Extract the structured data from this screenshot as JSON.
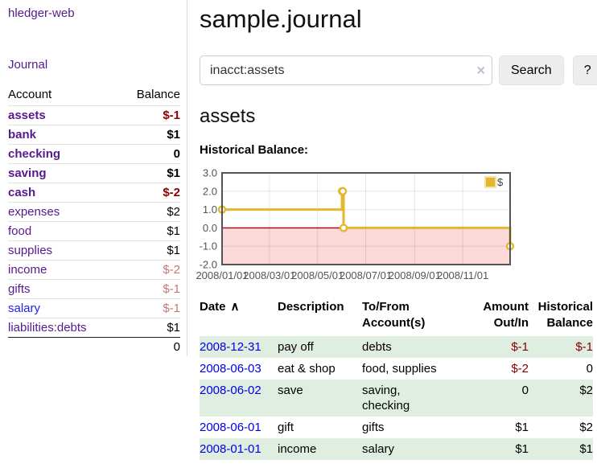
{
  "sidebar": {
    "app_title": "hledger-web",
    "journal_link": "Journal",
    "accounts_header": {
      "account": "Account",
      "balance": "Balance"
    },
    "accounts": [
      {
        "name": "assets",
        "balance": "$-1",
        "level": 1,
        "matched": true,
        "negative": "strong"
      },
      {
        "name": "bank",
        "balance": "$1",
        "level": 2,
        "matched": true,
        "negative": "none"
      },
      {
        "name": "checking",
        "balance": "0",
        "level": 3,
        "matched": true,
        "negative": "none"
      },
      {
        "name": "saving",
        "balance": "$1",
        "level": 3,
        "matched": true,
        "negative": "none"
      },
      {
        "name": "cash",
        "balance": "$-2",
        "level": 2,
        "matched": true,
        "negative": "strong"
      },
      {
        "name": "expenses",
        "balance": "$2",
        "level": 1,
        "matched": false,
        "negative": "none"
      },
      {
        "name": "food",
        "balance": "$1",
        "level": 2,
        "matched": false,
        "negative": "none"
      },
      {
        "name": "supplies",
        "balance": "$1",
        "level": 2,
        "matched": false,
        "negative": "none"
      },
      {
        "name": "income",
        "balance": "$-2",
        "level": 1,
        "matched": false,
        "negative": "dim"
      },
      {
        "name": "gifts",
        "balance": "$-1",
        "level": 2,
        "matched": false,
        "negative": "dim"
      },
      {
        "name": "salary",
        "balance": "$-1",
        "level": 2,
        "matched": false,
        "negative": "dim",
        "link_blue": true
      },
      {
        "name": "liabilities:debts",
        "balance": "$1",
        "level": 1,
        "matched": false,
        "negative": "none"
      }
    ],
    "total": "0"
  },
  "main": {
    "title": "sample.journal",
    "search": {
      "value": "inacct:assets",
      "clear_icon": "×",
      "button_label": "Search",
      "help_label": "?"
    },
    "section_title": "assets",
    "chart_label": "Historical Balance:"
  },
  "chart_data": {
    "type": "line",
    "step": true,
    "title": "Historical Balance",
    "series": [
      {
        "name": "$",
        "color": "#e3b730",
        "points": [
          {
            "date": "2008-01-01",
            "value": 1
          },
          {
            "date": "2008-06-01",
            "value": 2
          },
          {
            "date": "2008-06-02",
            "value": 2
          },
          {
            "date": "2008-06-03",
            "value": 0
          },
          {
            "date": "2008-12-31",
            "value": -1
          }
        ]
      }
    ],
    "x_ticks": [
      {
        "date": "2008-01-01",
        "label": "2008/01/01"
      },
      {
        "date": "2008-03-01",
        "label": "2008/03/01"
      },
      {
        "date": "2008-05-01",
        "label": "2008/05/01"
      },
      {
        "date": "2008-07-01",
        "label": "2008/07/01"
      },
      {
        "date": "2008-09-01",
        "label": "2008/09/01"
      },
      {
        "date": "2008-11-01",
        "label": "2008/11/01"
      }
    ],
    "y_ticks": [
      {
        "value": 3,
        "label": "3.0"
      },
      {
        "value": 2,
        "label": "2.0"
      },
      {
        "value": 1,
        "label": "1.0"
      },
      {
        "value": 0,
        "label": "0.0"
      },
      {
        "value": -1,
        "label": "-1.0"
      },
      {
        "value": -2,
        "label": "-2.0"
      }
    ],
    "ylim": [
      -2,
      3
    ],
    "x_range_days": 365,
    "grid": true,
    "legend_position": "top-right",
    "legend_label": "$",
    "colors": {
      "negative_region": "#fbd9d9",
      "zero_line": "#a40000",
      "border": "#545454",
      "gridline": "rgba(0,0,0,0.10)",
      "tick_text": "#545454",
      "marker_fill": "#ffffff",
      "legend_box_border": "#f3e2a9"
    }
  },
  "register": {
    "headers": {
      "date": "Date",
      "sort_icon": "∧",
      "description": "Description",
      "accounts": "To/From Account(s)",
      "amount": "Amount Out/In",
      "balance": "Historical Balance"
    },
    "rows": [
      {
        "date": "2008-12-31",
        "description": "pay off",
        "accounts_lines": [
          "debts"
        ],
        "amount": "$-1",
        "balance": "$-1",
        "amount_negative": true,
        "balance_negative": true
      },
      {
        "date": "2008-06-03",
        "description": "eat & shop",
        "accounts_lines": [
          "food, supplies"
        ],
        "amount": "$-2",
        "balance": "0",
        "amount_negative": true,
        "balance_negative": false
      },
      {
        "date": "2008-06-02",
        "description": "save",
        "accounts_lines": [
          "saving,",
          "checking"
        ],
        "amount": "0",
        "balance": "$2",
        "amount_negative": false,
        "balance_negative": false
      },
      {
        "date": "2008-06-01",
        "description": "gift",
        "accounts_lines": [
          "gifts"
        ],
        "amount": "$1",
        "balance": "$2",
        "amount_negative": false,
        "balance_negative": false
      },
      {
        "date": "2008-01-01",
        "description": "income",
        "accounts_lines": [
          "salary"
        ],
        "amount": "$1",
        "balance": "$1",
        "amount_negative": false,
        "balance_negative": false
      }
    ]
  }
}
